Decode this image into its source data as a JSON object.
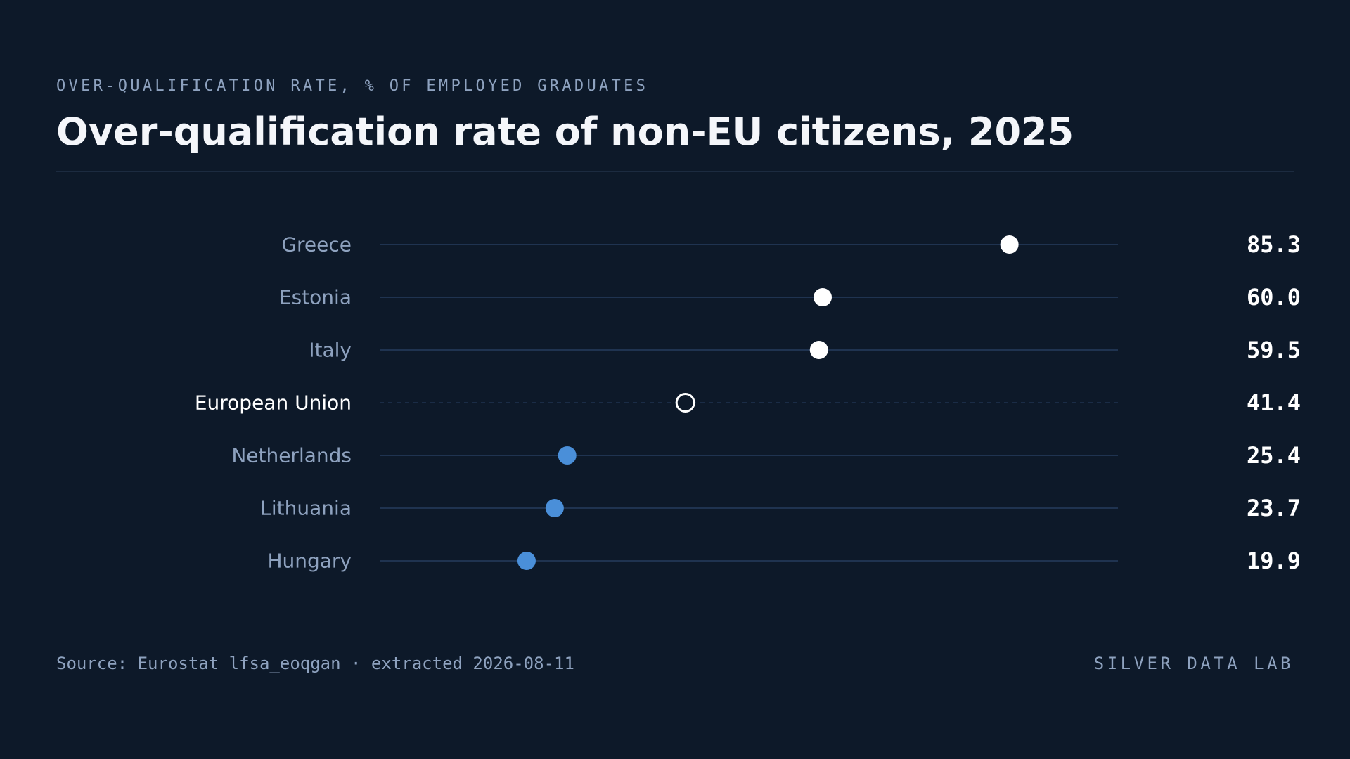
{
  "header": {
    "kicker": "OVER-QUALIFICATION RATE, % OF EMPLOYED GRADUATES",
    "title": "Over-qualification rate of non-EU citizens, 2025"
  },
  "footer": {
    "source": "Source: Eurostat lfsa_eoqgan · extracted 2026-08-11",
    "brand": "SILVER DATA LAB"
  },
  "colors": {
    "background": "#0d1929",
    "high": "#ffffff",
    "low": "#4a8fd9",
    "reference": "#ffffff",
    "track": "#1f3350",
    "label": "#8ea2bf",
    "reference_label": "#ffffff",
    "value": "#ffffff"
  },
  "chart_data": {
    "type": "dot",
    "title": "Over-qualification rate of non-EU citizens, 2025",
    "subtitle": "OVER-QUALIFICATION RATE, % OF EMPLOYED GRADUATES",
    "xlim": [
      0,
      100
    ],
    "grid": false,
    "categories": [
      "Greece",
      "Estonia",
      "Italy",
      "European Union",
      "Netherlands",
      "Lithuania",
      "Hungary"
    ],
    "values": [
      85.3,
      60.0,
      59.5,
      41.4,
      25.4,
      23.7,
      19.9
    ],
    "value_labels": [
      "85.3",
      "60.0",
      "59.5",
      "41.4",
      "25.4",
      "23.7",
      "19.9"
    ],
    "groups": [
      "high",
      "high",
      "high",
      "reference",
      "low",
      "low",
      "low"
    ]
  }
}
